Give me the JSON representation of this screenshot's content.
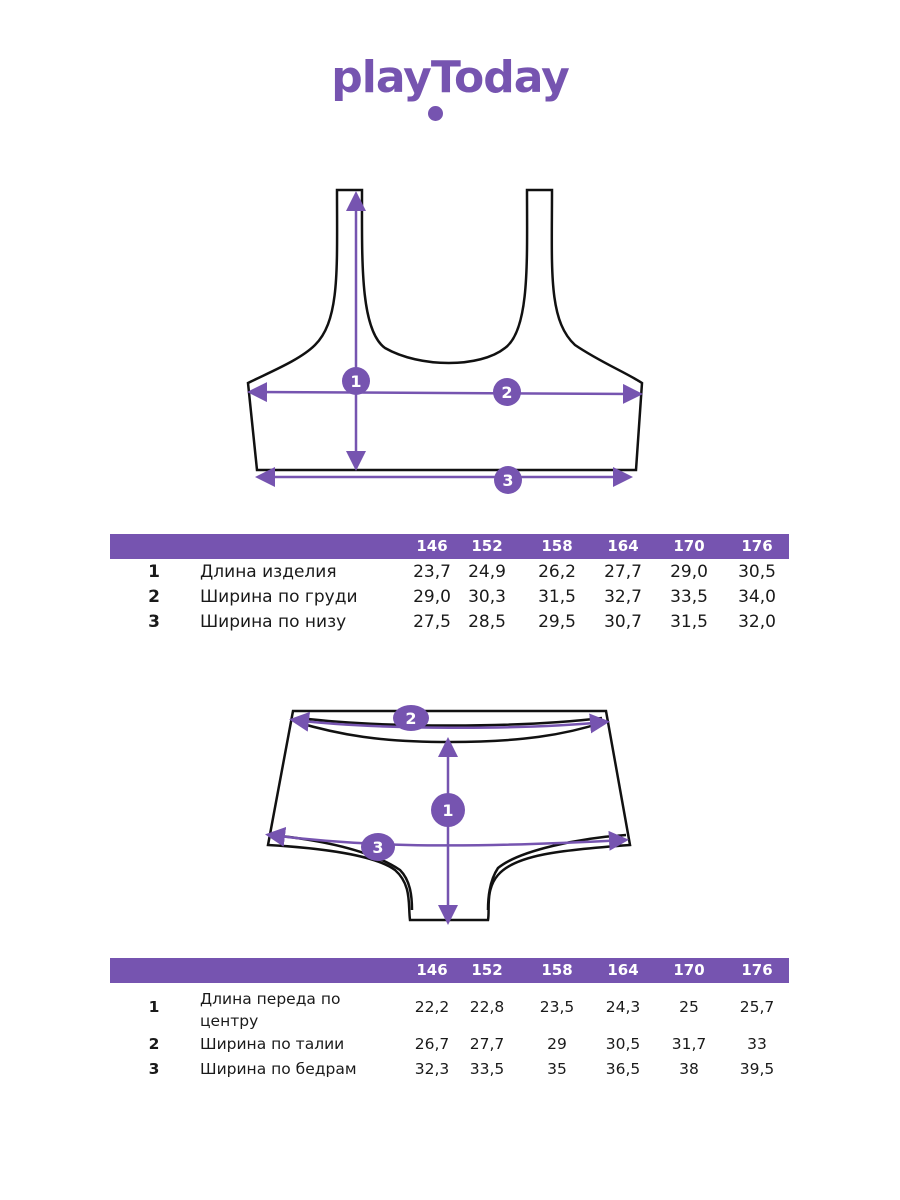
{
  "brand": {
    "logo_text": "playToday",
    "color": "#7654b0"
  },
  "top": {
    "markers": [
      "1",
      "2",
      "3"
    ],
    "table": {
      "sizes": [
        "146",
        "152",
        "158",
        "164",
        "170",
        "176"
      ],
      "rows": [
        {
          "num": "1",
          "label": "Длина изделия",
          "values": [
            "23,7",
            "24,9",
            "26,2",
            "27,7",
            "29,0",
            "30,5"
          ]
        },
        {
          "num": "2",
          "label": "Ширина по груди",
          "values": [
            "29,0",
            "30,3",
            "31,5",
            "32,7",
            "33,5",
            "34,0"
          ]
        },
        {
          "num": "3",
          "label": "Ширина по низу",
          "values": [
            "27,5",
            "28,5",
            "29,5",
            "30,7",
            "31,5",
            "32,0"
          ]
        }
      ]
    }
  },
  "bottom": {
    "markers": [
      "1",
      "2",
      "3"
    ],
    "table": {
      "sizes": [
        "146",
        "152",
        "158",
        "164",
        "170",
        "176"
      ],
      "rows": [
        {
          "num": "1",
          "label": "Длина переда по центру",
          "values": [
            "22,2",
            "22,8",
            "23,5",
            "24,3",
            "25",
            "25,7"
          ]
        },
        {
          "num": "2",
          "label": "Ширина по талии",
          "values": [
            "26,7",
            "27,7",
            "29",
            "30,5",
            "31,7",
            "33"
          ]
        },
        {
          "num": "3",
          "label": "Ширина по бедрам",
          "values": [
            "32,3",
            "33,5",
            "35",
            "36,5",
            "38",
            "39,5"
          ]
        }
      ]
    }
  }
}
